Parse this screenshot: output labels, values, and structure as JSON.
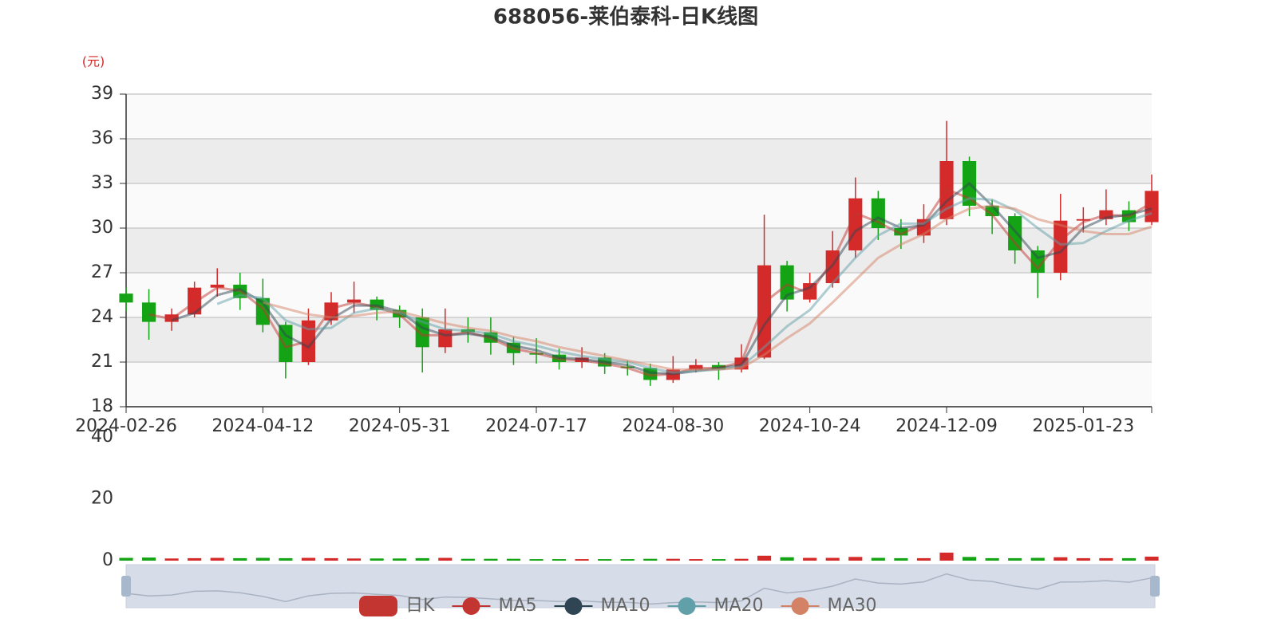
{
  "chart_data": {
    "type": "candlestick",
    "title": "688056-莱伯泰科-日K线图",
    "y_unit": "(元)",
    "categories": [
      "2024-02-26",
      null,
      null,
      null,
      null,
      null,
      "2024-04-12",
      null,
      null,
      null,
      null,
      null,
      "2024-05-31",
      null,
      null,
      null,
      null,
      null,
      "2024-07-17",
      null,
      null,
      null,
      null,
      null,
      "2024-08-30",
      null,
      null,
      null,
      null,
      null,
      "2024-10-24",
      null,
      null,
      null,
      null,
      null,
      "2024-12-09",
      null,
      null,
      null,
      null,
      null,
      "2025-01-23",
      null,
      null,
      null
    ],
    "ylim": [
      18,
      39
    ],
    "yticks": [
      18,
      21,
      24,
      27,
      30,
      33,
      36,
      39
    ],
    "grid": true,
    "up_color": "#d42a2a",
    "down_color": "#14a314",
    "series": [
      {
        "name": "日K",
        "color": "#c23531",
        "values": [
          [
            25.6,
            25.0,
            24.4,
            26.0
          ],
          [
            25.0,
            23.7,
            22.5,
            25.9
          ],
          [
            23.7,
            24.2,
            23.1,
            24.6
          ],
          [
            24.2,
            26.0,
            24.0,
            26.4
          ],
          [
            26.0,
            26.2,
            25.4,
            27.3
          ],
          [
            26.2,
            25.3,
            24.5,
            27.0
          ],
          [
            25.3,
            23.5,
            23.0,
            26.6
          ],
          [
            23.5,
            21.0,
            19.9,
            23.7
          ],
          [
            21.0,
            23.8,
            20.8,
            24.6
          ],
          [
            23.8,
            25.0,
            23.5,
            25.7
          ],
          [
            25.0,
            25.2,
            24.3,
            26.4
          ],
          [
            25.2,
            24.5,
            23.8,
            25.4
          ],
          [
            24.5,
            24.0,
            23.3,
            24.8
          ],
          [
            24.0,
            22.0,
            20.3,
            24.6
          ],
          [
            22.0,
            23.2,
            21.6,
            24.6
          ],
          [
            23.2,
            23.0,
            22.3,
            24.0
          ],
          [
            23.0,
            22.3,
            21.5,
            24.0
          ],
          [
            22.3,
            21.6,
            20.8,
            22.7
          ],
          [
            21.6,
            21.5,
            20.9,
            22.6
          ],
          [
            21.5,
            21.0,
            20.5,
            21.9
          ],
          [
            21.0,
            21.3,
            20.6,
            22.0
          ],
          [
            21.3,
            20.7,
            20.2,
            21.6
          ],
          [
            20.7,
            20.6,
            20.1,
            21.1
          ],
          [
            20.6,
            19.8,
            19.4,
            20.9
          ],
          [
            19.8,
            20.5,
            19.6,
            21.4
          ],
          [
            20.5,
            20.8,
            20.3,
            21.2
          ],
          [
            20.8,
            20.5,
            19.8,
            21.0
          ],
          [
            20.5,
            21.3,
            20.3,
            22.2
          ],
          [
            21.3,
            27.5,
            21.2,
            30.9
          ],
          [
            27.5,
            25.2,
            24.4,
            27.8
          ],
          [
            25.2,
            26.3,
            25.0,
            27.0
          ],
          [
            26.3,
            28.5,
            26.0,
            29.8
          ],
          [
            28.5,
            32.0,
            28.0,
            33.4
          ],
          [
            32.0,
            30.0,
            29.2,
            32.5
          ],
          [
            30.0,
            29.5,
            28.6,
            30.6
          ],
          [
            29.5,
            30.6,
            29.0,
            31.6
          ],
          [
            30.6,
            34.5,
            30.2,
            37.2
          ],
          [
            34.5,
            31.5,
            30.8,
            34.8
          ],
          [
            31.5,
            30.8,
            29.6,
            31.9
          ],
          [
            30.8,
            28.5,
            27.6,
            31.0
          ],
          [
            28.5,
            27.0,
            25.3,
            28.8
          ],
          [
            27.0,
            30.5,
            26.5,
            32.3
          ],
          [
            30.5,
            30.6,
            29.7,
            31.4
          ],
          [
            30.6,
            31.2,
            30.2,
            32.6
          ],
          [
            31.2,
            30.4,
            29.8,
            31.8
          ],
          [
            30.4,
            32.5,
            30.2,
            33.6
          ]
        ]
      },
      {
        "name": "MA5",
        "color": "#c23531",
        "values": [
          null,
          24.2,
          23.9,
          25.0,
          26.0,
          25.8,
          24.6,
          22.0,
          22.4,
          24.6,
          25.0,
          24.7,
          24.2,
          22.8,
          22.8,
          23.0,
          22.6,
          21.9,
          21.6,
          21.2,
          21.1,
          20.9,
          20.6,
          20.1,
          20.2,
          20.6,
          20.6,
          21.0,
          25.0,
          26.2,
          25.6,
          27.8,
          31.0,
          30.4,
          29.6,
          30.3,
          32.6,
          32.0,
          30.9,
          29.0,
          27.3,
          29.2,
          30.4,
          30.9,
          30.8,
          31.7
        ]
      },
      {
        "name": "MA10",
        "color": "#2f4554",
        "values": [
          null,
          null,
          23.8,
          24.3,
          25.5,
          25.9,
          25.0,
          22.8,
          22.0,
          23.9,
          24.8,
          24.8,
          24.4,
          23.3,
          22.8,
          22.9,
          22.7,
          22.1,
          21.8,
          21.3,
          21.2,
          21.0,
          20.8,
          20.3,
          20.2,
          20.4,
          20.6,
          20.8,
          23.5,
          25.5,
          26.0,
          27.5,
          29.8,
          30.7,
          30.0,
          30.2,
          31.8,
          33.0,
          31.5,
          29.8,
          28.0,
          28.4,
          30.0,
          30.7,
          30.9,
          31.3
        ]
      },
      {
        "name": "MA20",
        "color": "#61a0a8",
        "values": [
          null,
          null,
          null,
          null,
          24.9,
          25.5,
          25.3,
          23.8,
          23.2,
          23.3,
          24.3,
          24.6,
          24.3,
          23.7,
          23.2,
          23.1,
          22.9,
          22.4,
          22.1,
          21.7,
          21.4,
          21.2,
          21.0,
          20.6,
          20.3,
          20.4,
          20.5,
          20.7,
          22.0,
          23.4,
          24.5,
          26.3,
          28.0,
          29.5,
          30.3,
          30.3,
          31.3,
          32.0,
          31.9,
          31.2,
          30.0,
          28.9,
          29.0,
          29.8,
          30.5,
          31.0
        ]
      },
      {
        "name": "MA30",
        "color": "#d48265",
        "values": [
          null,
          null,
          null,
          null,
          null,
          null,
          25.0,
          24.6,
          24.2,
          24.0,
          24.1,
          24.3,
          24.4,
          24.0,
          23.6,
          23.3,
          23.1,
          22.7,
          22.4,
          22.0,
          21.7,
          21.4,
          21.1,
          20.8,
          20.5,
          20.5,
          20.5,
          20.6,
          21.5,
          22.6,
          23.6,
          25.0,
          26.5,
          28.0,
          28.9,
          29.6,
          30.6,
          31.3,
          31.5,
          31.3,
          30.6,
          30.2,
          29.8,
          29.6,
          29.6,
          30.1
        ]
      }
    ],
    "volume": {
      "ylim": [
        0,
        40
      ],
      "yticks": [
        0,
        20,
        40
      ],
      "values": [
        0.9,
        1.0,
        0.7,
        0.8,
        0.9,
        0.8,
        0.9,
        0.8,
        0.9,
        0.8,
        0.7,
        0.7,
        0.7,
        0.8,
        0.9,
        0.6,
        0.6,
        0.6,
        0.5,
        0.5,
        0.5,
        0.5,
        0.5,
        0.6,
        0.6,
        0.5,
        0.5,
        0.6,
        1.6,
        1.1,
        0.9,
        0.9,
        1.2,
        0.9,
        0.8,
        0.8,
        2.6,
        1.2,
        0.8,
        0.8,
        0.9,
        1.1,
        0.8,
        0.8,
        0.8,
        1.3
      ]
    }
  }
}
